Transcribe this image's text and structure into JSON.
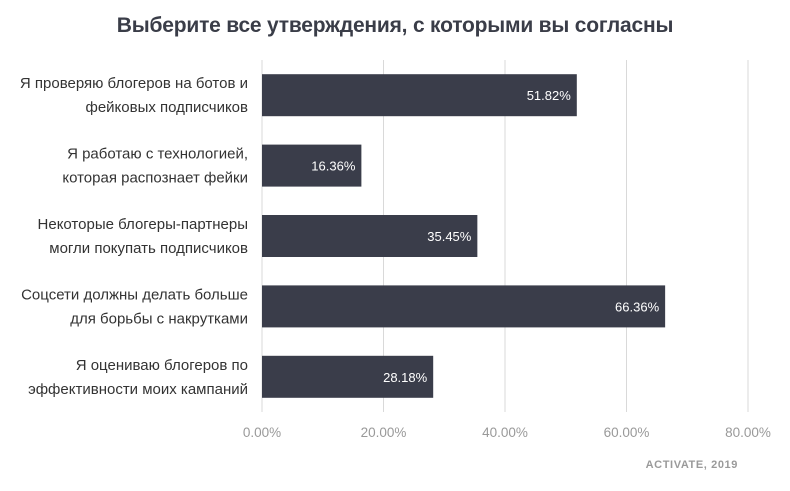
{
  "chart_data": {
    "type": "bar",
    "orientation": "horizontal",
    "title": "Выберите все утверждения, с которыми вы согласны",
    "categories": [
      [
        "Я проверяю блогеров на ботов и",
        "фейковых подписчиков"
      ],
      [
        "Я работаю с технологией,",
        "которая распознает фейки"
      ],
      [
        "Некоторые блогеры-партнеры",
        "могли покупать подписчиков"
      ],
      [
        "Соцсети должны делать больше",
        "для борьбы с накрутками"
      ],
      [
        "Я оцениваю блогеров по",
        "эффективности моих кампаний"
      ]
    ],
    "values": [
      51.82,
      16.36,
      35.45,
      66.36,
      28.18
    ],
    "value_labels": [
      "51.82%",
      "16.36%",
      "35.45%",
      "66.36%",
      "28.18%"
    ],
    "xlim": [
      0,
      80
    ],
    "x_ticks": [
      0,
      20,
      40,
      60,
      80
    ],
    "x_tick_labels": [
      "0.00%",
      "20.00%",
      "40.00%",
      "60.00%",
      "80.00%"
    ],
    "grid": "vertical",
    "bar_color": "#3a3d4a",
    "grid_color": "#d9d9d9",
    "xlabel": "",
    "ylabel": ""
  },
  "source": "ACTIVATE, 2019"
}
